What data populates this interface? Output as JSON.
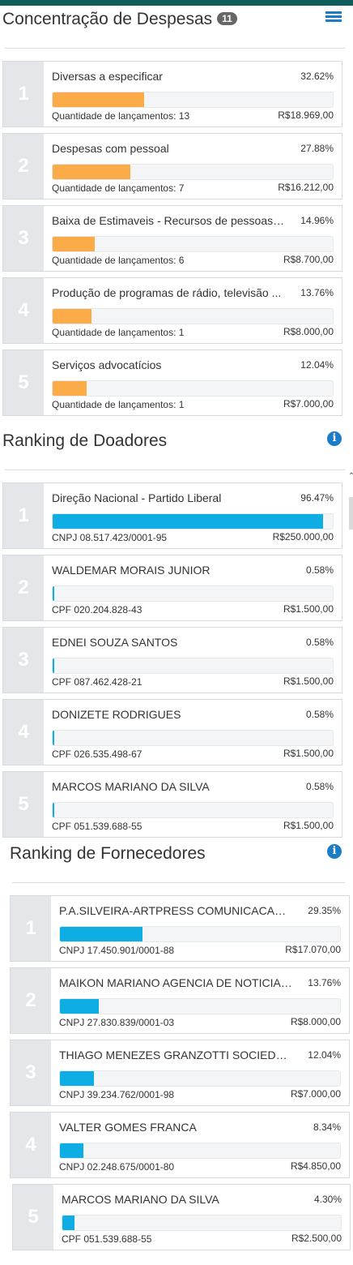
{
  "concentracao": {
    "title": "Concentração de Despesas",
    "badge": "11",
    "items": [
      {
        "rank": "1",
        "name": "Diversas a especificar",
        "percent": "32.62%",
        "fill": 0.3262,
        "sub": "Quantidade de lançamentos: 13",
        "amount": "R$18.969,00"
      },
      {
        "rank": "2",
        "name": "Despesas com pessoal",
        "percent": "27.88%",
        "fill": 0.2788,
        "sub": "Quantidade de lançamentos: 7",
        "amount": "R$16.212,00"
      },
      {
        "rank": "3",
        "name": "Baixa de Estimaveis - Recursos de pessoas f...",
        "percent": "14.96%",
        "fill": 0.1496,
        "sub": "Quantidade de lançamentos: 6",
        "amount": "R$8.700,00"
      },
      {
        "rank": "4",
        "name": "Produção de programas de rádio, televisão ...",
        "percent": "13.76%",
        "fill": 0.1376,
        "sub": "Quantidade de lançamentos: 1",
        "amount": "R$8.000,00"
      },
      {
        "rank": "5",
        "name": "Serviços advocatícios",
        "percent": "12.04%",
        "fill": 0.1204,
        "sub": "Quantidade de lançamentos: 1",
        "amount": "R$7.000,00"
      }
    ]
  },
  "doadores": {
    "title": "Ranking de Doadores",
    "items": [
      {
        "rank": "1",
        "name": "Direção Nacional - Partido Liberal",
        "percent": "96.47%",
        "fill": 0.9647,
        "sub": "CNPJ 08.517.423/0001-95",
        "amount": "R$250.000,00"
      },
      {
        "rank": "2",
        "name": "WALDEMAR MORAIS JUNIOR",
        "percent": "0.58%",
        "fill": 0.0058,
        "sub": "CPF 020.204.828-43",
        "amount": "R$1.500,00"
      },
      {
        "rank": "3",
        "name": "EDNEI SOUZA SANTOS",
        "percent": "0.58%",
        "fill": 0.0058,
        "sub": "CPF 087.462.428-21",
        "amount": "R$1.500,00"
      },
      {
        "rank": "4",
        "name": "DONIZETE RODRIGUES",
        "percent": "0.58%",
        "fill": 0.0058,
        "sub": "CPF 026.535.498-67",
        "amount": "R$1.500,00"
      },
      {
        "rank": "5",
        "name": "MARCOS MARIANO DA SILVA",
        "percent": "0.58%",
        "fill": 0.0058,
        "sub": "CPF 051.539.688-55",
        "amount": "R$1.500,00"
      }
    ]
  },
  "fornecedores": {
    "title": "Ranking de Fornecedores",
    "items": [
      {
        "rank": "1",
        "name": "P.A.SILVEIRA-ARTPRESS COMUNICACAO VIS...",
        "percent": "29.35%",
        "fill": 0.2935,
        "sub": "CNPJ 17.450.901/0001-88",
        "amount": "R$17.070,00"
      },
      {
        "rank": "2",
        "name": "MAIKON MARIANO AGENCIA DE NOTICIAS E...",
        "percent": "13.76%",
        "fill": 0.1376,
        "sub": "CNPJ 27.830.839/0001-03",
        "amount": "R$8.000,00"
      },
      {
        "rank": "3",
        "name": "THIAGO MENEZES GRANZOTTI SOCIEDADE I...",
        "percent": "12.04%",
        "fill": 0.1204,
        "sub": "CNPJ 39.234.762/0001-98",
        "amount": "R$7.000,00"
      },
      {
        "rank": "4",
        "name": "VALTER GOMES FRANCA",
        "percent": "8.34%",
        "fill": 0.0834,
        "sub": "CNPJ 02.248.675/0001-80",
        "amount": "R$4.850,00"
      },
      {
        "rank": "5",
        "name": "MARCOS MARIANO DA SILVA",
        "percent": "4.30%",
        "fill": 0.043,
        "sub": "CPF 051.539.688-55",
        "amount": "R$2.500,00"
      }
    ]
  },
  "colors": {
    "expense_bar": "#fbac48",
    "ranking_bar": "#0eaee5",
    "accent": "#1b7cc8"
  },
  "icons": {
    "concentracao": "list-icon",
    "doadores": "info-icon",
    "fornecedores": "info-icon"
  }
}
